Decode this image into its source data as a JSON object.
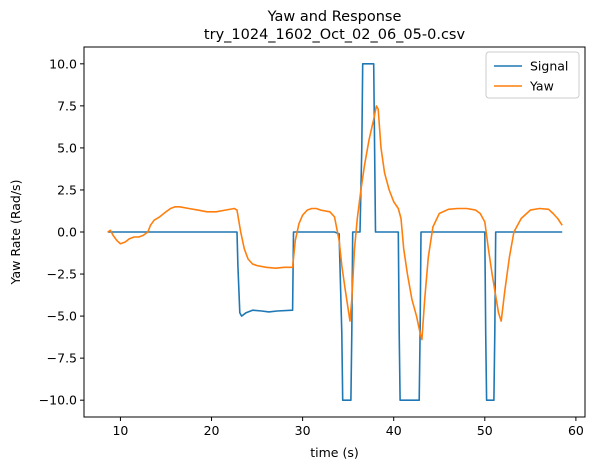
{
  "chart_data": {
    "type": "line",
    "title_lines": [
      "Yaw and Response",
      "try_1024_1602_Oct_02_06_05-0.csv"
    ],
    "xlabel": "time (s)",
    "ylabel": "Yaw Rate (Rad/s)",
    "xlim": [
      6,
      61
    ],
    "ylim": [
      -11,
      11
    ],
    "xticks": [
      10,
      20,
      30,
      40,
      50,
      60
    ],
    "xtick_labels": [
      "10",
      "20",
      "30",
      "40",
      "50",
      "60"
    ],
    "yticks": [
      -10.0,
      -7.5,
      -5.0,
      -2.5,
      0.0,
      2.5,
      5.0,
      7.5,
      10.0
    ],
    "ytick_labels": [
      "−10.0",
      "−7.5",
      "−5.0",
      "−2.5",
      "0.0",
      "2.5",
      "5.0",
      "7.5",
      "10.0"
    ],
    "grid": false,
    "legend_position": "top-right",
    "series": [
      {
        "name": "Signal",
        "color": "#1f77b4",
        "x": [
          8.6,
          22.8,
          22.9,
          23.1,
          23.3,
          23.8,
          24.5,
          25.5,
          26.3,
          27.2,
          28.9,
          29.0,
          29.1,
          33.5,
          34.0,
          34.3,
          34.4,
          35.3,
          35.4,
          35.5,
          35.8,
          36.3,
          36.5,
          36.6,
          37.8,
          37.9,
          38.0,
          38.1,
          40.5,
          40.6,
          40.7,
          42.8,
          42.9,
          43.0,
          43.1,
          50.0,
          50.1,
          50.2,
          51.0,
          51.1,
          51.2,
          58.5
        ],
        "y": [
          0.0,
          0.0,
          -2.0,
          -4.8,
          -5.0,
          -4.8,
          -4.65,
          -4.7,
          -4.75,
          -4.7,
          -4.65,
          0.0,
          0.0,
          0.0,
          -0.1,
          -6.0,
          -10.0,
          -10.0,
          -6.0,
          0.0,
          0.0,
          0.0,
          5.0,
          10.0,
          10.0,
          5.0,
          0.0,
          0.0,
          0.0,
          -6.0,
          -10.0,
          -10.0,
          -6.0,
          0.0,
          0.0,
          0.0,
          -6.0,
          -10.0,
          -10.0,
          -6.0,
          0.0,
          0.0
        ]
      },
      {
        "name": "Yaw",
        "color": "#ff7f0e",
        "x": [
          8.6,
          8.9,
          9.2,
          9.6,
          10.0,
          10.5,
          11.0,
          11.5,
          12.0,
          12.5,
          13.0,
          13.3,
          13.7,
          14.3,
          15.0,
          15.5,
          16.0,
          16.5,
          17.5,
          18.5,
          19.5,
          20.5,
          21.5,
          22.5,
          22.8,
          23.2,
          23.6,
          24.0,
          24.5,
          25.0,
          26.0,
          27.0,
          28.0,
          28.9,
          29.2,
          29.6,
          30.0,
          30.5,
          31.0,
          31.5,
          32.0,
          33.0,
          33.5,
          34.0,
          34.3,
          34.7,
          35.0,
          35.2,
          35.4,
          35.7,
          36.0,
          36.4,
          36.8,
          37.3,
          37.8,
          38.1,
          38.3,
          38.6,
          39.0,
          39.5,
          40.0,
          40.5,
          40.8,
          41.1,
          41.5,
          42.0,
          42.5,
          42.9,
          43.1,
          43.4,
          43.8,
          44.3,
          45.0,
          46.0,
          47.0,
          48.0,
          49.0,
          49.5,
          50.0,
          50.4,
          50.8,
          51.2,
          51.5,
          51.8,
          52.2,
          52.7,
          53.2,
          54.0,
          55.0,
          56.0,
          57.0,
          57.5,
          58.0,
          58.5
        ],
        "y": [
          0.0,
          0.1,
          -0.2,
          -0.5,
          -0.7,
          -0.6,
          -0.4,
          -0.3,
          -0.3,
          -0.2,
          0.0,
          0.4,
          0.7,
          0.9,
          1.2,
          1.4,
          1.5,
          1.5,
          1.4,
          1.3,
          1.2,
          1.2,
          1.3,
          1.4,
          1.3,
          0.0,
          -1.0,
          -1.6,
          -1.9,
          -2.0,
          -2.1,
          -2.15,
          -2.1,
          -2.1,
          -0.5,
          0.5,
          1.0,
          1.3,
          1.4,
          1.4,
          1.3,
          1.2,
          0.9,
          -0.5,
          -2.0,
          -3.5,
          -4.6,
          -5.3,
          -4.0,
          -1.0,
          0.8,
          2.5,
          4.0,
          5.5,
          6.7,
          7.5,
          7.3,
          5.0,
          3.5,
          2.5,
          1.8,
          1.4,
          0.8,
          -1.0,
          -2.5,
          -4.0,
          -5.0,
          -6.0,
          -6.4,
          -4.0,
          -1.5,
          0.3,
          1.1,
          1.35,
          1.4,
          1.4,
          1.3,
          1.1,
          0.6,
          -1.0,
          -2.5,
          -3.8,
          -4.8,
          -5.3,
          -3.5,
          -1.5,
          0.0,
          0.8,
          1.3,
          1.4,
          1.35,
          1.1,
          0.8,
          0.4
        ]
      }
    ]
  }
}
